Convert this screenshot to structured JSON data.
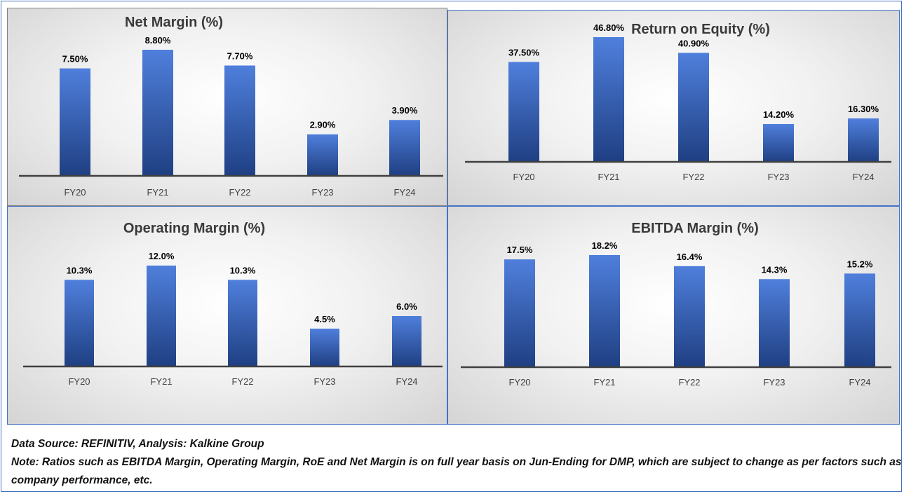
{
  "colors": {
    "bar_top": "#4f7fdc",
    "bar_bottom": "#1f3f82",
    "axis": "#404040",
    "panel_border": "#4472c4"
  },
  "chart_data": [
    {
      "id": "net",
      "type": "bar",
      "title": "Net Margin (%)",
      "categories": [
        "FY20",
        "FY21",
        "FY22",
        "FY23",
        "FY24"
      ],
      "values": [
        7.5,
        8.8,
        7.7,
        2.9,
        3.9
      ],
      "data_labels": [
        "7.50%",
        "8.80%",
        "7.70%",
        "2.90%",
        "3.90%"
      ],
      "ylim": [
        0,
        8.8
      ],
      "grid": false,
      "legend": "none"
    },
    {
      "id": "roe",
      "type": "bar",
      "title": "Return on Equity (%)",
      "categories": [
        "FY20",
        "FY21",
        "FY22",
        "FY23",
        "FY24"
      ],
      "values": [
        37.5,
        46.8,
        40.9,
        14.2,
        16.3
      ],
      "data_labels": [
        "37.50%",
        "46.80%",
        "40.90%",
        "14.20%",
        "16.30%"
      ],
      "ylim": [
        0,
        46.8
      ],
      "grid": false,
      "legend": "none"
    },
    {
      "id": "op",
      "type": "bar",
      "title": "Operating Margin (%)",
      "categories": [
        "FY20",
        "FY21",
        "FY22",
        "FY23",
        "FY24"
      ],
      "values": [
        10.3,
        12.0,
        10.3,
        4.5,
        6.0
      ],
      "data_labels": [
        "10.3%",
        "12.0%",
        "10.3%",
        "4.5%",
        "6.0%"
      ],
      "ylim": [
        0,
        12.0
      ],
      "grid": false,
      "legend": "none"
    },
    {
      "id": "ebitda",
      "type": "bar",
      "title": "EBITDA Margin (%)",
      "categories": [
        "FY20",
        "FY21",
        "FY22",
        "FY23",
        "FY24"
      ],
      "values": [
        17.5,
        18.2,
        16.4,
        14.3,
        15.2
      ],
      "data_labels": [
        "17.5%",
        "18.2%",
        "16.4%",
        "14.3%",
        "15.2%"
      ],
      "ylim": [
        0,
        18.2
      ],
      "grid": false,
      "legend": "none"
    }
  ],
  "footer": {
    "source": "Data Source: REFINITIV, Analysis: Kalkine Group",
    "note": "Note: Ratios such as EBITDA Margin, Operating Margin, RoE and Net Margin is on full year basis on Jun-Ending for DMP, which are subject to change as per factors such as company performance, etc."
  }
}
